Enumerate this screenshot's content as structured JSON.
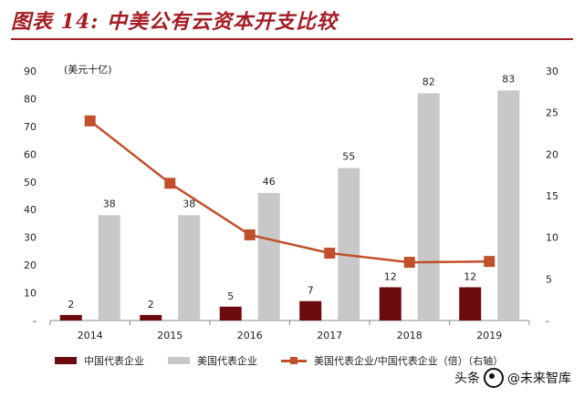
{
  "title": "图表 14:  中美公有云资本开支比较",
  "unit_label": "(美元十亿)",
  "watermark": {
    "prefix": "头条",
    "text": "@未来智库"
  },
  "colors": {
    "title": "#a31d24",
    "china": "#6b0a0f",
    "us": "#c8c8c8",
    "ratio": "#c0502a"
  },
  "legend": {
    "china": "中国代表企业",
    "us": "美国代表企业",
    "ratio": "美国代表企业/中国代表企业（倍）（右轴）"
  },
  "chart_data": {
    "type": "bar",
    "categories": [
      "2014",
      "2015",
      "2016",
      "2017",
      "2018",
      "2019"
    ],
    "series": [
      {
        "name": "中国代表企业",
        "type": "bar",
        "axis": "left",
        "values": [
          2,
          2,
          5,
          7,
          12,
          12
        ]
      },
      {
        "name": "美国代表企业",
        "type": "bar",
        "axis": "left",
        "values": [
          38,
          38,
          46,
          55,
          82,
          83
        ]
      },
      {
        "name": "美国代表企业/中国代表企业（倍）（右轴）",
        "type": "line",
        "axis": "right",
        "values": [
          24,
          16.5,
          10.3,
          8.1,
          7.0,
          7.1
        ]
      }
    ],
    "data_labels": {
      "china": [
        "2",
        "2",
        "5",
        "7",
        "12",
        "12"
      ],
      "us": [
        "38",
        "38",
        "46",
        "55",
        "82",
        "83"
      ]
    },
    "ylim_left": [
      0,
      90
    ],
    "yticks_left": [
      "-",
      "10",
      "20",
      "30",
      "40",
      "50",
      "60",
      "70",
      "80",
      "90"
    ],
    "ylim_right": [
      0,
      30
    ],
    "yticks_right": [
      "-",
      "5",
      "10",
      "15",
      "20",
      "25",
      "30"
    ],
    "grid": false,
    "legend_position": "bottom"
  }
}
